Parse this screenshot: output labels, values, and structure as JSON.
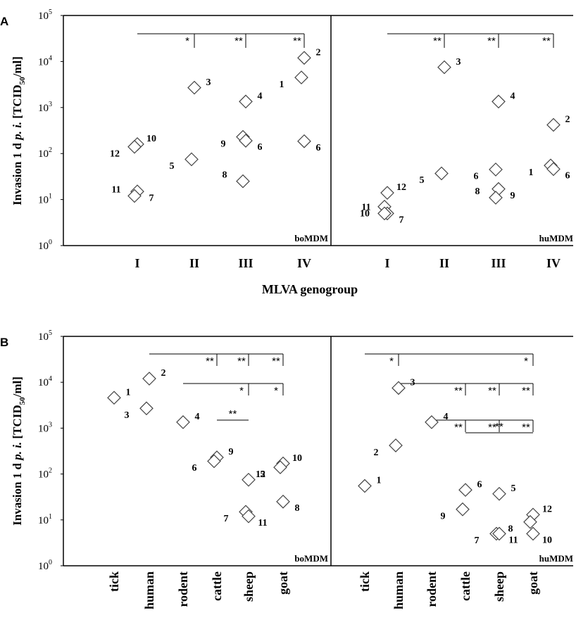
{
  "chart_data": [
    {
      "panel": "A",
      "type": "scatter",
      "ylabel_main": "Invasion 1 d ",
      "ylabel_pi": "p. i.",
      "ylabel_unit": " [TCID",
      "ylabel_sub": "50",
      "ylabel_end": "/ml]",
      "xlabel": "MLVA genogroup",
      "yscale": "log",
      "ylim": [
        1,
        100000
      ],
      "yticks": [
        {
          "base": "10",
          "exp": "0"
        },
        {
          "base": "10",
          "exp": "1"
        },
        {
          "base": "10",
          "exp": "2"
        },
        {
          "base": "10",
          "exp": "3"
        },
        {
          "base": "10",
          "exp": "4"
        },
        {
          "base": "10",
          "exp": "5"
        }
      ],
      "subpanels": [
        {
          "name": "boMDM",
          "categories": [
            "I",
            "II",
            "III",
            "IV"
          ],
          "points": [
            {
              "category": "I",
              "y": 160,
              "label": "10"
            },
            {
              "category": "I",
              "y": 140,
              "label": "12"
            },
            {
              "category": "I",
              "y": 15,
              "label": "7"
            },
            {
              "category": "I",
              "y": 12,
              "label": "11"
            },
            {
              "category": "II",
              "y": 2700,
              "label": "3"
            },
            {
              "category": "II",
              "y": 75,
              "label": "5"
            },
            {
              "category": "III",
              "y": 1350,
              "label": "4"
            },
            {
              "category": "III",
              "y": 230,
              "label": "9"
            },
            {
              "category": "III",
              "y": 190,
              "label": "6"
            },
            {
              "category": "III",
              "y": 25,
              "label": "8"
            },
            {
              "category": "IV",
              "y": 12000,
              "label": "2"
            },
            {
              "category": "IV",
              "y": 4500,
              "label": "1"
            },
            {
              "category": "IV",
              "y": 185,
              "label": "6"
            }
          ],
          "significance": [
            {
              "from": "I",
              "to": "II",
              "text": "*"
            },
            {
              "from": "I",
              "to": "III",
              "text": "**"
            },
            {
              "from": "I",
              "to": "IV",
              "text": "**"
            }
          ]
        },
        {
          "name": "huMDM",
          "categories": [
            "I",
            "II",
            "III",
            "IV"
          ],
          "points": [
            {
              "category": "I",
              "y": 14,
              "label": "12"
            },
            {
              "category": "I",
              "y": 7,
              "label": "10"
            },
            {
              "category": "I",
              "y": 5,
              "label": "7"
            },
            {
              "category": "I",
              "y": 5,
              "label": "11"
            },
            {
              "category": "II",
              "y": 7500,
              "label": "3"
            },
            {
              "category": "II",
              "y": 37,
              "label": "5"
            },
            {
              "category": "III",
              "y": 1350,
              "label": "4"
            },
            {
              "category": "III",
              "y": 45,
              "label": "6"
            },
            {
              "category": "III",
              "y": 17,
              "label": "9"
            },
            {
              "category": "III",
              "y": 11,
              "label": "8"
            },
            {
              "category": "IV",
              "y": 420,
              "label": "2"
            },
            {
              "category": "IV",
              "y": 55,
              "label": "1"
            },
            {
              "category": "IV",
              "y": 46,
              "label": "6"
            }
          ],
          "significance": [
            {
              "from": "I",
              "to": "II",
              "text": "**"
            },
            {
              "from": "I",
              "to": "III",
              "text": "**"
            },
            {
              "from": "I",
              "to": "IV",
              "text": "**"
            }
          ]
        }
      ]
    },
    {
      "panel": "B",
      "type": "scatter",
      "ylabel_main": "Invasion 1 d ",
      "ylabel_pi": "p. i.",
      "ylabel_unit": " [TCID",
      "ylabel_sub": "50",
      "ylabel_end": "/ml]",
      "yscale": "log",
      "ylim": [
        1,
        100000
      ],
      "yticks": [
        {
          "base": "10",
          "exp": "0"
        },
        {
          "base": "10",
          "exp": "1"
        },
        {
          "base": "10",
          "exp": "2"
        },
        {
          "base": "10",
          "exp": "3"
        },
        {
          "base": "10",
          "exp": "4"
        },
        {
          "base": "10",
          "exp": "5"
        }
      ],
      "subpanels": [
        {
          "name": "boMDM",
          "categories": [
            "tick",
            "human",
            "rodent",
            "cattle",
            "sheep",
            "goat"
          ],
          "points": [
            {
              "category": "tick",
              "y": 4600,
              "label": "1"
            },
            {
              "category": "human",
              "y": 12000,
              "label": "2"
            },
            {
              "category": "human",
              "y": 2700,
              "label": "3"
            },
            {
              "category": "rodent",
              "y": 1350,
              "label": "4"
            },
            {
              "category": "cattle",
              "y": 230,
              "label": "9"
            },
            {
              "category": "cattle",
              "y": 190,
              "label": "6"
            },
            {
              "category": "sheep",
              "y": 75,
              "label": "5"
            },
            {
              "category": "sheep",
              "y": 15,
              "label": "7"
            },
            {
              "category": "sheep",
              "y": 12,
              "label": "11"
            },
            {
              "category": "goat",
              "y": 170,
              "label": "10"
            },
            {
              "category": "goat",
              "y": 140,
              "label": "12"
            },
            {
              "category": "goat",
              "y": 25,
              "label": "8"
            }
          ],
          "significance": [
            {
              "from": "human",
              "to": "cattle",
              "text": "**",
              "row": 0
            },
            {
              "from": "human",
              "to": "sheep",
              "text": "**",
              "row": 0
            },
            {
              "from": "human",
              "to": "goat",
              "text": "**",
              "row": 0
            },
            {
              "from": "rodent",
              "to": "sheep",
              "text": "*",
              "row": 1
            },
            {
              "from": "rodent",
              "to": "goat",
              "text": "*",
              "row": 1
            },
            {
              "from": "cattle",
              "to": "sheep",
              "text": "**",
              "row": 2
            }
          ]
        },
        {
          "name": "huMDM",
          "categories": [
            "tick",
            "human",
            "rodent",
            "cattle",
            "sheep",
            "goat"
          ],
          "points": [
            {
              "category": "tick",
              "y": 55,
              "label": "1"
            },
            {
              "category": "human",
              "y": 7500,
              "label": "3"
            },
            {
              "category": "human",
              "y": 420,
              "label": "2"
            },
            {
              "category": "rodent",
              "y": 1350,
              "label": "4"
            },
            {
              "category": "cattle",
              "y": 45,
              "label": "6"
            },
            {
              "category": "cattle",
              "y": 17,
              "label": "9"
            },
            {
              "category": "sheep",
              "y": 37,
              "label": "5"
            },
            {
              "category": "sheep",
              "y": 5,
              "label": "7"
            },
            {
              "category": "sheep",
              "y": 5,
              "label": "11"
            },
            {
              "category": "goat",
              "y": 13,
              "label": "12"
            },
            {
              "category": "goat",
              "y": 9,
              "label": "8"
            },
            {
              "category": "goat",
              "y": 5,
              "label": "10"
            }
          ],
          "significance": [
            {
              "from": "tick",
              "to": "human",
              "text": "*",
              "row": 0
            },
            {
              "from": "tick",
              "to": "goat",
              "text": "*",
              "row": 0
            },
            {
              "from": "human",
              "to": "cattle",
              "text": "**",
              "row": 1
            },
            {
              "from": "human",
              "to": "sheep",
              "text": "**",
              "row": 1
            },
            {
              "from": "human",
              "to": "goat",
              "text": "**",
              "row": 1
            },
            {
              "from": "rodent",
              "to": "cattle",
              "text": "**",
              "row": 2
            },
            {
              "from": "rodent",
              "to": "sheep",
              "text": "**",
              "row": 2
            },
            {
              "from": "rodent",
              "to": "goat",
              "text": "**",
              "row": 2
            },
            {
              "from": "cattle",
              "to": "goat",
              "text": "**",
              "row": 3
            }
          ]
        }
      ]
    }
  ]
}
